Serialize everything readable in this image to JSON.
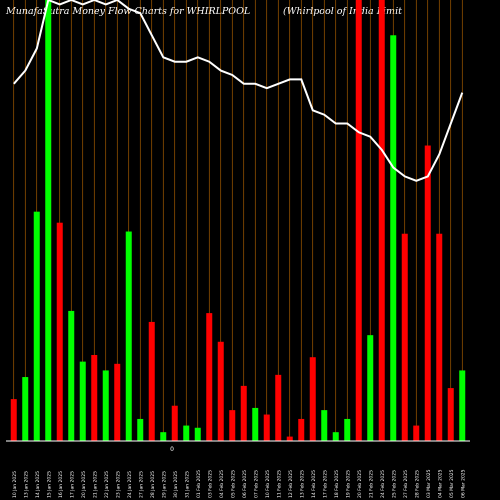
{
  "chart_data": {
    "type": "bar",
    "title": "MunafaSutra  Money Flow  Charts for WHIRLPOOL",
    "subtitle": "(Whirlpool of India  Limit",
    "center_label": "0",
    "ylim": [
      0,
      100
    ],
    "colors": {
      "up": "#00ff00",
      "down": "#ff0000",
      "line": "#ffffff",
      "grid": "#ff8c00"
    },
    "categories": [
      "10 Jan 2025",
      "13 Jan 2025",
      "14 Jan 2025",
      "15 Jan 2025",
      "16 Jan 2025",
      "17 Jan 2025",
      "20 Jan 2025",
      "21 Jan 2025",
      "22 Jan 2025",
      "23 Jan 2025",
      "24 Jan 2025",
      "27 Jan 2025",
      "28 Jan 2025",
      "29 Jan 2025",
      "30 Jan 2025",
      "31 Jan 2025",
      "01 Feb 2025",
      "03 Feb 2025",
      "04 Feb 2025",
      "05 Feb 2025",
      "06 Feb 2025",
      "07 Feb 2025",
      "10 Feb 2025",
      "11 Feb 2025",
      "12 Feb 2025",
      "13 Feb 2025",
      "14 Feb 2025",
      "17 Feb 2025",
      "18 Feb 2025",
      "19 Feb 2025",
      "20 Feb 2025",
      "21 Feb 2025",
      "24 Feb 2025",
      "25 Feb 2025",
      "27 Feb 2025",
      "28 Feb 2025",
      "03 Mar 2025",
      "04 Mar 2025",
      "05 Mar 2025",
      "06 Mar 2025"
    ],
    "series": [
      {
        "values": [
          9.5,
          14.5,
          52,
          100,
          49.5,
          29.5,
          18,
          19.5,
          16,
          17.5,
          47.5,
          5,
          27,
          2,
          8,
          3.5,
          3,
          29,
          22.5,
          7,
          12.5,
          7.5,
          6,
          15,
          1,
          5,
          19,
          7,
          2,
          5,
          100,
          24,
          100,
          92,
          47,
          3.5,
          67,
          47,
          12,
          16
        ]
      },
      {
        "values": [
          81,
          84,
          89,
          100,
          99,
          100,
          99,
          100,
          99,
          100,
          98,
          97,
          92,
          87,
          86,
          86,
          87,
          86,
          84,
          83,
          81,
          81,
          80,
          81,
          82,
          82,
          75,
          74,
          72,
          72,
          70,
          69,
          66,
          62,
          60,
          59,
          60,
          65,
          72,
          79
        ]
      }
    ],
    "bar_direction": [
      "down",
      "up",
      "up",
      "up",
      "down",
      "up",
      "up",
      "down",
      "up",
      "down",
      "up",
      "up",
      "down",
      "up",
      "down",
      "up",
      "up",
      "down",
      "down",
      "down",
      "down",
      "up",
      "down",
      "down",
      "down",
      "down",
      "down",
      "up",
      "up",
      "up",
      "down",
      "up",
      "down",
      "up",
      "down",
      "down",
      "down",
      "down",
      "down",
      "up"
    ]
  }
}
